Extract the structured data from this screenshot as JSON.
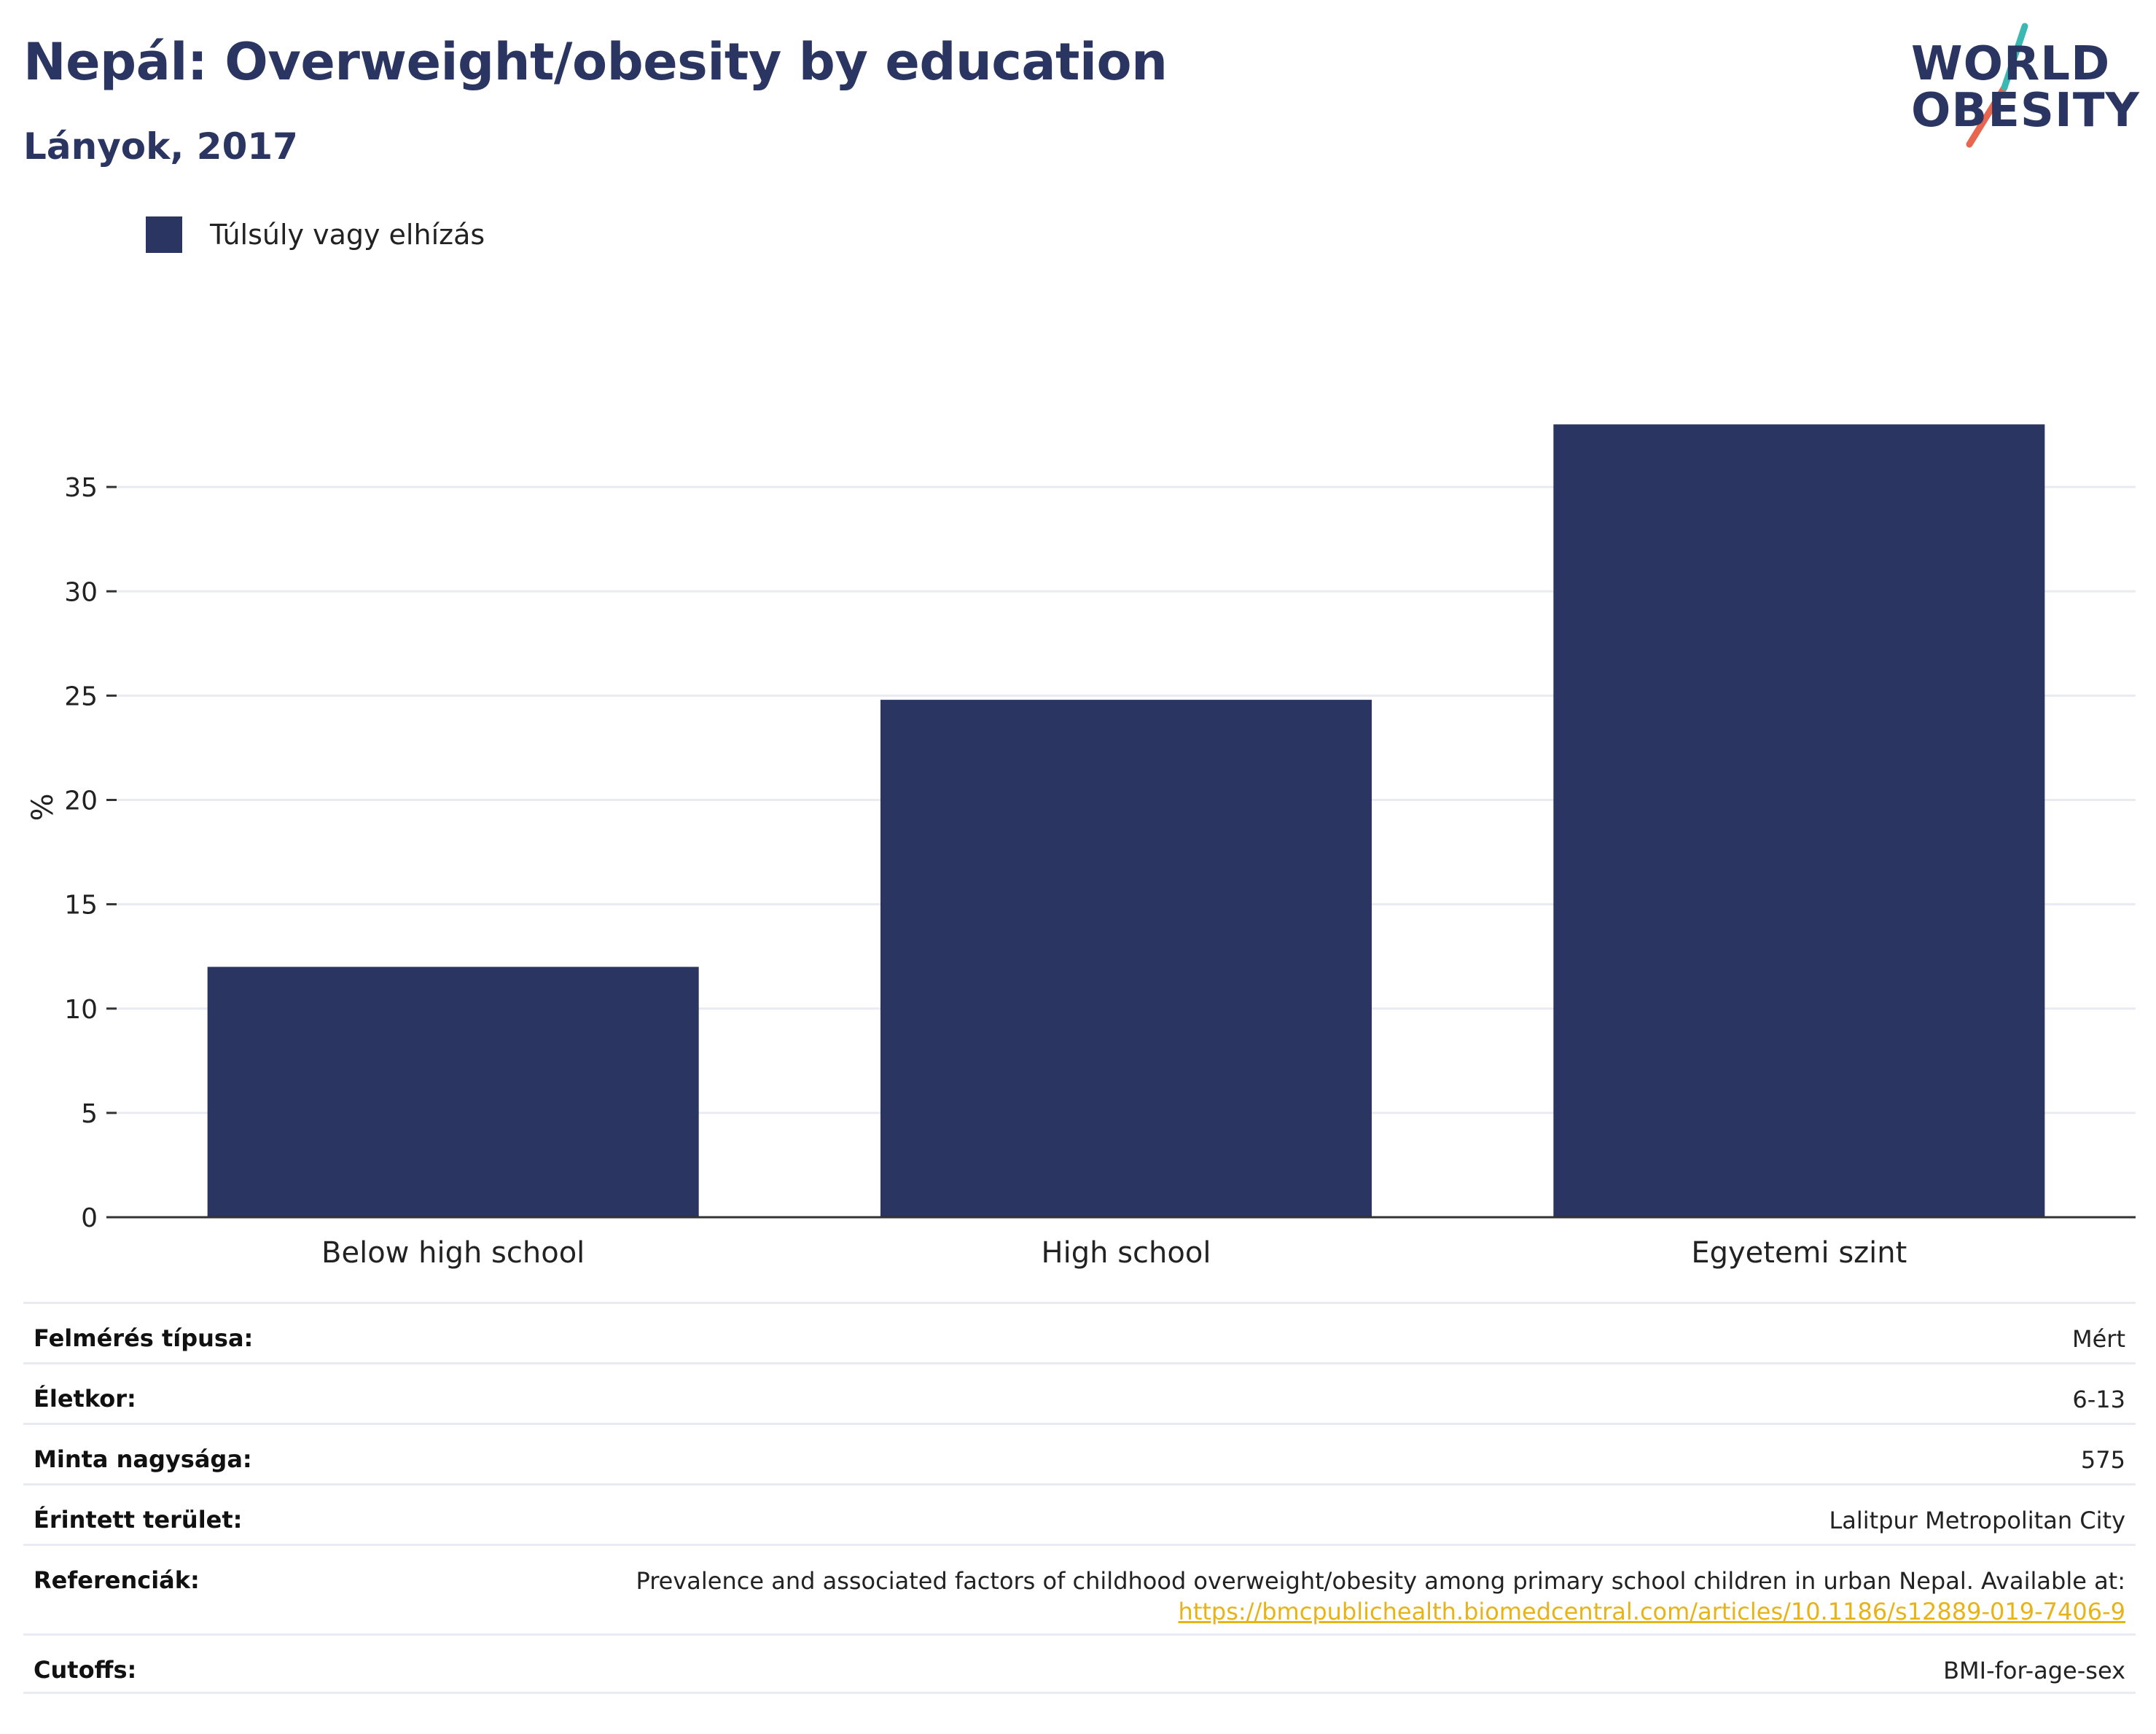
{
  "header": {
    "title": "Nepál: Overweight/obesity by education",
    "subtitle": "Lányok, 2017"
  },
  "logo": {
    "line1": "WORLD",
    "line2": "OBESITY",
    "colors": {
      "text": "#2b3561",
      "slash_top": "#3bb8b2",
      "slash_bottom": "#e8664f"
    }
  },
  "legend": {
    "label": "Túlsúly vagy elhízás",
    "color": "#2b3561"
  },
  "chart_data": {
    "type": "bar",
    "categories": [
      "Below high school",
      "High school",
      "Egyetemi szint"
    ],
    "series": [
      {
        "name": "Túlsúly vagy elhízás",
        "values": [
          12.0,
          24.8,
          38.0
        ],
        "color": "#2b3561"
      }
    ],
    "ylabel": "%",
    "xlabel": "",
    "ylim": [
      0,
      40
    ],
    "yticks": [
      0,
      5,
      10,
      15,
      20,
      25,
      30,
      35
    ],
    "grid": true,
    "legend_position": "top-left"
  },
  "meta": {
    "rows": [
      {
        "label": "Felmérés típusa:",
        "value": "Mért"
      },
      {
        "label": "Életkor:",
        "value": "6-13"
      },
      {
        "label": "Minta nagysága:",
        "value": "575"
      },
      {
        "label": "Érintett terület:",
        "value": "Lalitpur Metropolitan City"
      },
      {
        "label": "Referenciák:",
        "value": "Prevalence and associated factors of childhood overweight/obesity among primary school children in urban Nepal. Available at:",
        "link": "https://bmcpublichealth.biomedcentral.com/articles/10.1186/s12889-019-7406-9"
      },
      {
        "label": "Cutoffs:",
        "value": "BMI-for-age-sex"
      }
    ],
    "link_color": "#e8b317"
  }
}
